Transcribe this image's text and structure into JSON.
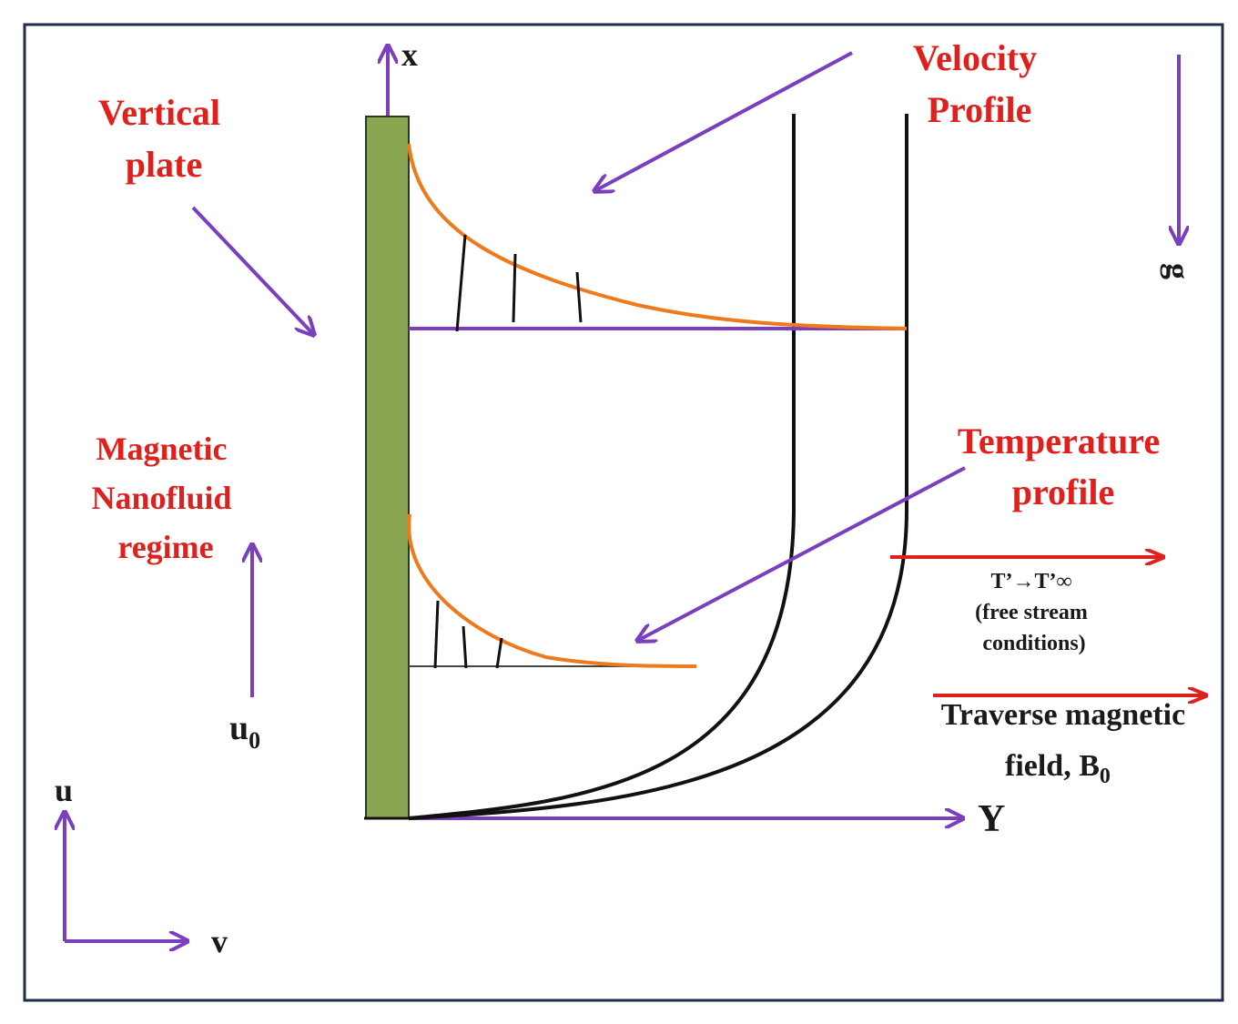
{
  "labels": {
    "vertical_plate": [
      "Vertical",
      "plate"
    ],
    "velocity_profile": [
      "Velocity",
      "Profile"
    ],
    "temperature_profile": [
      "Temperature",
      "profile"
    ],
    "magnetic_regime": [
      "Magnetic",
      "Nanofluid",
      "regime"
    ],
    "free_stream": [
      "T’→T’∞",
      "(free stream",
      "conditions)"
    ],
    "magnetic_field_line1": "Traverse magnetic",
    "magnetic_field_line2": "field, B",
    "magnetic_field_sub": "0",
    "x_axis": "x",
    "y_axis": "Y",
    "gravity": "g",
    "u0_main": "u",
    "u0_sub": "0",
    "u_dir": "u",
    "v_dir": "v"
  },
  "colors": {
    "frame": "#1f2d4a",
    "plate": "#8aa650",
    "plate_border": "#2a3a1a",
    "arrow": "#7a3fbf",
    "profile": "#ee7a1c",
    "red_text": "#e0201c",
    "red_arrow": "#e0201c",
    "curve": "#111111"
  }
}
